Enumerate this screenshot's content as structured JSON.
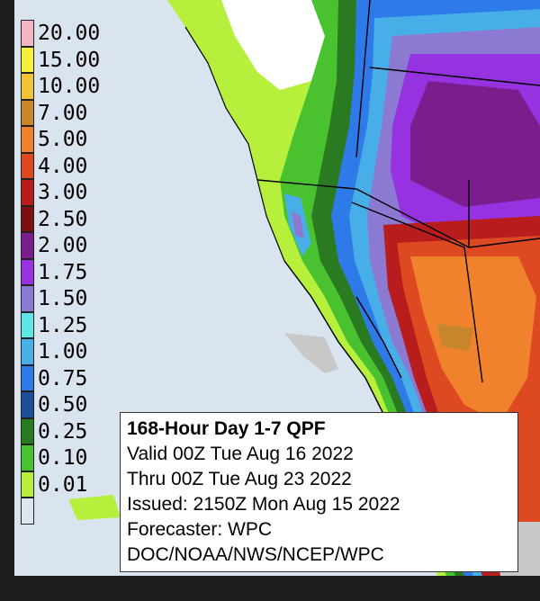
{
  "legend": {
    "items": [
      {
        "label": "20.00",
        "color": "#f4b6c2"
      },
      {
        "label": "15.00",
        "color": "#f6ef3c"
      },
      {
        "label": "10.00",
        "color": "#efc23a"
      },
      {
        "label": "7.00",
        "color": "#c8862c"
      },
      {
        "label": "5.00",
        "color": "#f0822e"
      },
      {
        "label": "4.00",
        "color": "#dd4a22"
      },
      {
        "label": "3.00",
        "color": "#b81c1c"
      },
      {
        "label": "2.50",
        "color": "#7c1010"
      },
      {
        "label": "2.00",
        "color": "#7a1e8e"
      },
      {
        "label": "1.75",
        "color": "#9632e0"
      },
      {
        "label": "1.50",
        "color": "#8c7ad2"
      },
      {
        "label": "1.25",
        "color": "#5ee6e6"
      },
      {
        "label": "1.00",
        "color": "#48aee8"
      },
      {
        "label": "0.75",
        "color": "#2e7ae8"
      },
      {
        "label": "0.50",
        "color": "#1e4e96"
      },
      {
        "label": "0.25",
        "color": "#2a7a22"
      },
      {
        "label": "0.10",
        "color": "#4ac230"
      },
      {
        "label": "0.01",
        "color": "#b6f03c"
      },
      {
        "label": "",
        "color": "#dfe5ec"
      }
    ]
  },
  "info": {
    "title": "168-Hour Day 1-7 QPF",
    "valid": "Valid 00Z Tue Aug 16 2022",
    "thru": "Thru 00Z Tue Aug 23 2022",
    "issued": "Issued: 2150Z Mon Aug 15 2022",
    "forecaster": "Forecaster: WPC",
    "agency": "DOC/NOAA/NWS/NCEP/WPC"
  },
  "colors": {
    "ocean": "#d9e4ef",
    "land_dry": "#ffffff",
    "frame": "#1e1e1e"
  }
}
